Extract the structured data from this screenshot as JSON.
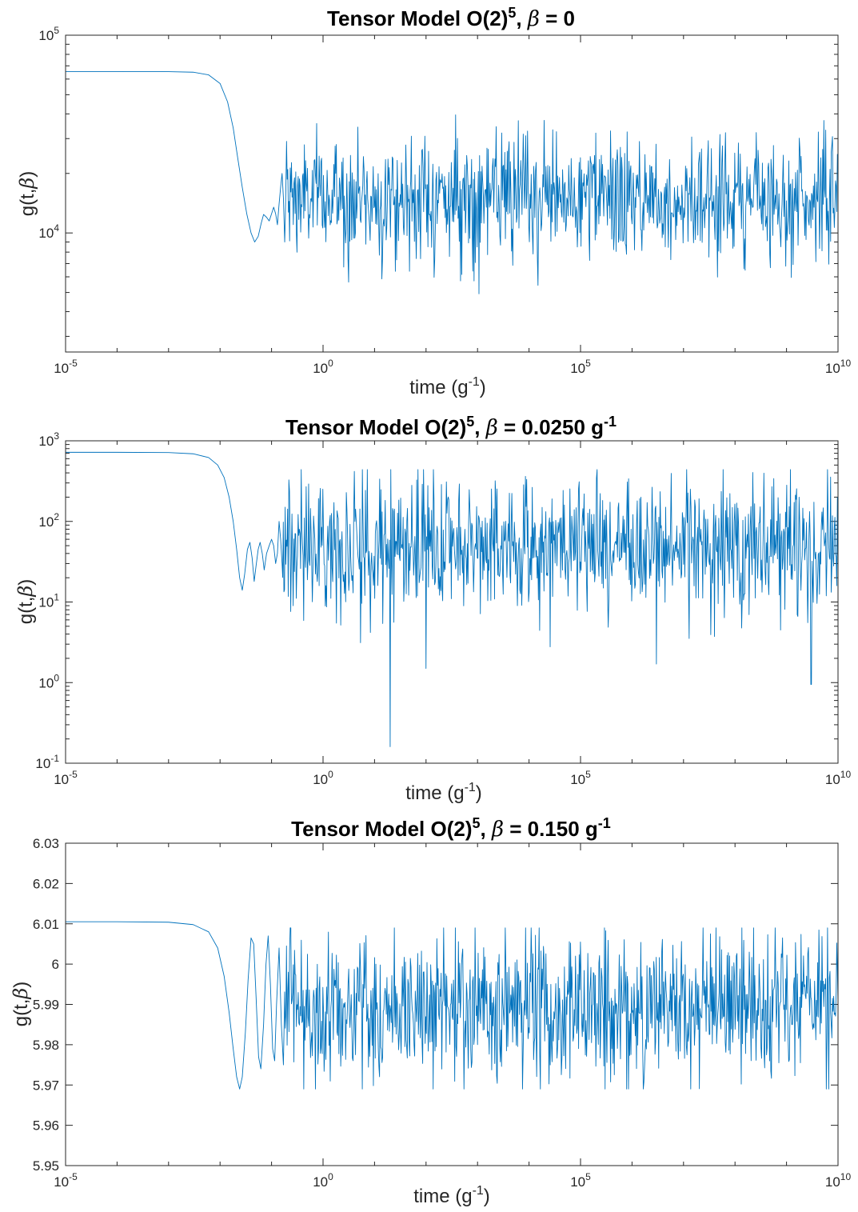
{
  "chart_data": [
    {
      "type": "line",
      "title": {
        "main": "Tensor Model O(2)",
        "sup": "5",
        "beta_expr": " = 0",
        "unit": "",
        "unit_sup": ""
      },
      "xlabel": {
        "main": "time (g",
        "sup": "-1",
        "close": ")"
      },
      "ylabel": {
        "main": "g(t,",
        "close": ")"
      },
      "xscale": "log",
      "yscale": "log",
      "xlim": [
        1e-05,
        10000000000.0
      ],
      "ylim": [
        2500,
        100000
      ],
      "xticks": [
        {
          "value": 1e-05,
          "base": "10",
          "exp": "-5"
        },
        {
          "value": 1,
          "base": "10",
          "exp": "0"
        },
        {
          "value": 100000.0,
          "base": "10",
          "exp": "5"
        },
        {
          "value": 10000000000.0,
          "base": "10",
          "exp": "10"
        }
      ],
      "yticks": [
        {
          "value": 10000,
          "base": "10",
          "exp": "4"
        },
        {
          "value": 100000,
          "base": "10",
          "exp": "5"
        }
      ],
      "grid": false,
      "color": "#0072BD",
      "series": [
        {
          "x": [
            1e-05,
            0.0001,
            0.001,
            0.003,
            0.006,
            0.01,
            0.014,
            0.018,
            0.022,
            0.027,
            0.033,
            0.04,
            0.047,
            0.055,
            0.063,
            0.07,
            0.08,
            0.09,
            0.1,
            0.11,
            0.12,
            0.13,
            0.14,
            0.15,
            0.16,
            0.17,
            0.18
          ],
          "y": [
            65500,
            65500,
            65400,
            65000,
            63000,
            57000,
            46000,
            34000,
            24000,
            17000,
            12500,
            10000,
            9000,
            9600,
            11200,
            12400,
            12000,
            11500,
            12500,
            13500,
            12500,
            11000,
            14000,
            17000,
            20000,
            15000,
            9000
          ]
        }
      ],
      "noise": {
        "x_start": 0.18,
        "x_end": 10000000000.0,
        "y_center": 15000,
        "y_min": 4800,
        "y_max": 48000,
        "n_points": 900
      }
    },
    {
      "type": "line",
      "title": {
        "main": "Tensor Model O(2)",
        "sup": "5",
        "beta_expr": " = 0.0250 g",
        "unit": "",
        "unit_sup": "-1"
      },
      "xlabel": {
        "main": "time (g",
        "sup": "-1",
        "close": ")"
      },
      "ylabel": {
        "main": "g(t,",
        "close": ")"
      },
      "xscale": "log",
      "yscale": "log",
      "xlim": [
        1e-05,
        10000000000.0
      ],
      "ylim": [
        0.1,
        1000
      ],
      "xticks": [
        {
          "value": 1e-05,
          "base": "10",
          "exp": "-5"
        },
        {
          "value": 1,
          "base": "10",
          "exp": "0"
        },
        {
          "value": 100000.0,
          "base": "10",
          "exp": "5"
        },
        {
          "value": 10000000000.0,
          "base": "10",
          "exp": "10"
        }
      ],
      "yticks": [
        {
          "value": 0.1,
          "base": "10",
          "exp": "-1"
        },
        {
          "value": 1,
          "base": "10",
          "exp": "0"
        },
        {
          "value": 10,
          "base": "10",
          "exp": "1"
        },
        {
          "value": 100,
          "base": "10",
          "exp": "2"
        },
        {
          "value": 1000,
          "base": "10",
          "exp": "3"
        }
      ],
      "grid": false,
      "color": "#0072BD",
      "series": [
        {
          "x": [
            1e-05,
            0.0001,
            0.001,
            0.003,
            0.006,
            0.009,
            0.012,
            0.015,
            0.018,
            0.021,
            0.024,
            0.027,
            0.03,
            0.034,
            0.038,
            0.042,
            0.046,
            0.05,
            0.055,
            0.06,
            0.066,
            0.072,
            0.08,
            0.09,
            0.1,
            0.11,
            0.12,
            0.13,
            0.14,
            0.15,
            0.16
          ],
          "y": [
            720,
            720,
            715,
            690,
            620,
            500,
            350,
            200,
            100,
            45,
            20,
            14,
            22,
            45,
            55,
            35,
            18,
            28,
            45,
            55,
            40,
            25,
            40,
            50,
            60,
            50,
            30,
            40,
            100,
            60,
            30
          ]
        }
      ],
      "noise": {
        "x_start": 0.16,
        "x_end": 10000000000.0,
        "y_center": 50,
        "y_min": 0.9,
        "y_max": 440,
        "n_points": 900
      },
      "spikes": [
        {
          "x": 20,
          "y": 0.16
        },
        {
          "x": 100,
          "y": 1.5
        },
        {
          "x": 3000000.0,
          "y": 1.7
        },
        {
          "x": 3000000000.0,
          "y": 0.95
        }
      ]
    },
    {
      "type": "line",
      "title": {
        "main": "Tensor Model O(2)",
        "sup": "5",
        "beta_expr": " = 0.150 g",
        "unit": "",
        "unit_sup": "-1"
      },
      "xlabel": {
        "main": "time (g",
        "sup": "-1",
        "close": ")"
      },
      "ylabel": {
        "main": "g(t,",
        "close": ")"
      },
      "xscale": "log",
      "yscale": "linear",
      "xlim": [
        1e-05,
        10000000000.0
      ],
      "ylim": [
        5.95,
        6.03
      ],
      "xticks": [
        {
          "value": 1e-05,
          "base": "10",
          "exp": "-5"
        },
        {
          "value": 1,
          "base": "10",
          "exp": "0"
        },
        {
          "value": 100000.0,
          "base": "10",
          "exp": "5"
        },
        {
          "value": 10000000000.0,
          "base": "10",
          "exp": "10"
        }
      ],
      "yticks": [
        {
          "value": 5.95,
          "label": "5.95"
        },
        {
          "value": 5.96,
          "label": "5.96"
        },
        {
          "value": 5.97,
          "label": "5.97"
        },
        {
          "value": 5.98,
          "label": "5.98"
        },
        {
          "value": 5.99,
          "label": "5.99"
        },
        {
          "value": 6.0,
          "label": "6"
        },
        {
          "value": 6.01,
          "label": "6.01"
        },
        {
          "value": 6.02,
          "label": "6.02"
        },
        {
          "value": 6.03,
          "label": "6.03"
        }
      ],
      "grid": false,
      "color": "#0072BD",
      "series": [
        {
          "x": [
            1e-05,
            0.0001,
            0.001,
            0.003,
            0.006,
            0.009,
            0.012,
            0.015,
            0.018,
            0.021,
            0.024,
            0.027,
            0.031,
            0.035,
            0.04,
            0.045,
            0.05,
            0.056,
            0.062,
            0.07,
            0.078,
            0.086,
            0.095,
            0.105,
            0.115,
            0.125,
            0.14,
            0.155,
            0.17
          ],
          "y": [
            6.0105,
            6.0105,
            6.0104,
            6.0098,
            6.008,
            6.004,
            5.997,
            5.988,
            5.979,
            5.972,
            5.969,
            5.972,
            5.983,
            5.996,
            6.0065,
            6.005,
            5.992,
            5.977,
            5.974,
            5.985,
            6.0,
            6.007,
            5.995,
            5.979,
            5.976,
            5.99,
            6.004,
            5.985,
            5.975
          ]
        }
      ],
      "noise": {
        "x_start": 0.17,
        "x_end": 10000000000.0,
        "y_center": 5.989,
        "y_min": 5.969,
        "y_max": 6.009,
        "n_points": 900
      }
    }
  ]
}
